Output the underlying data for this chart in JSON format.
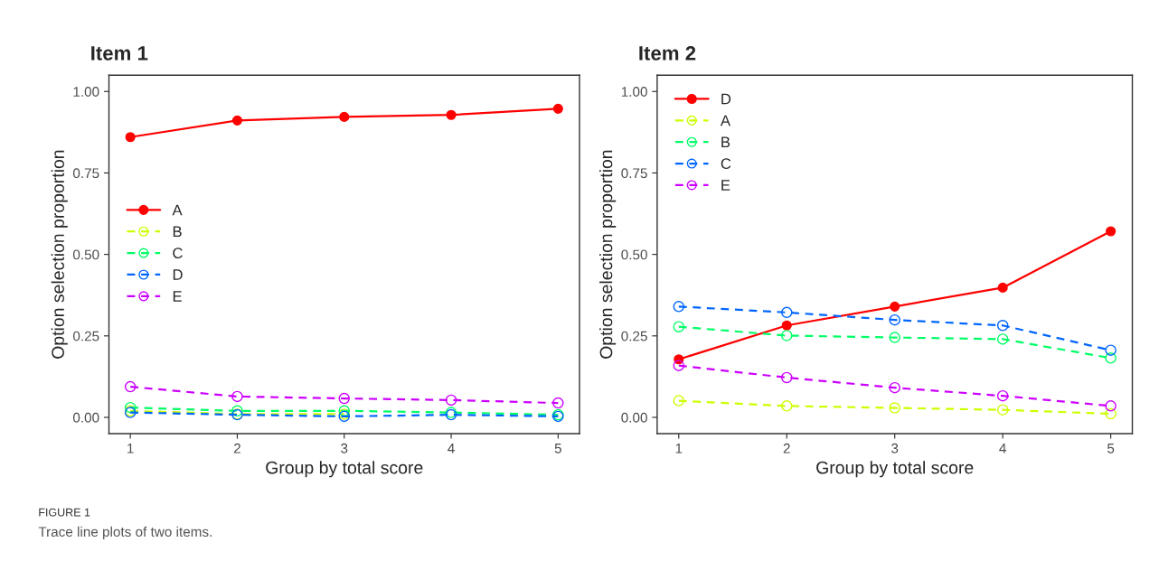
{
  "chart_data": [
    {
      "type": "line",
      "title": "Item 1",
      "xlabel": "Group by total score",
      "ylabel": "Option selection proportion",
      "x": [
        1,
        2,
        3,
        4,
        5
      ],
      "series": [
        {
          "name": "A",
          "color": "#ff0000",
          "values": [
            0.86,
            0.911,
            0.922,
            0.928,
            0.947
          ],
          "marker": "circle",
          "line_style": "solid"
        },
        {
          "name": "B",
          "color": "#ccff00",
          "values": [
            0.02,
            0.01,
            0.01,
            null,
            null
          ],
          "marker": "circle",
          "line_style": "dashed"
        },
        {
          "name": "C",
          "color": "#00ff66",
          "values": [
            0.03,
            0.02,
            0.02,
            0.015,
            0.008
          ],
          "marker": "circle",
          "line_style": "dashed"
        },
        {
          "name": "D",
          "color": "#0066ff",
          "values": [
            0.015,
            0.008,
            0.003,
            0.008,
            0.003
          ],
          "marker": "circle",
          "line_style": "dashed"
        },
        {
          "name": "E",
          "color": "#cc00ff",
          "values": [
            0.094,
            0.064,
            0.058,
            0.053,
            0.044
          ],
          "marker": "circle",
          "line_style": "dashed"
        }
      ],
      "xlim": [
        0.8,
        5.2
      ],
      "ylim": [
        -0.05,
        1.05
      ],
      "xticks": [
        1,
        2,
        3,
        4,
        5
      ],
      "yticks": [
        {
          "value": 0,
          "label": "0.00"
        },
        {
          "value": 0.25,
          "label": "0.25"
        },
        {
          "value": 0.5,
          "label": "0.50"
        },
        {
          "value": 0.75,
          "label": "0.75"
        },
        {
          "value": 1,
          "label": "1.00"
        }
      ],
      "grid": false,
      "legend": "left",
      "annotations": [
        "FIGURE 1",
        "Trace line plots of two items."
      ]
    },
    {
      "type": "line",
      "title": "Item 2",
      "xlabel": "Group by total score",
      "ylabel": "Option selection proportion",
      "x": [
        1,
        2,
        3,
        4,
        5
      ],
      "series": [
        {
          "name": "D",
          "color": "#ff0000",
          "values": [
            0.178,
            0.282,
            0.34,
            0.398,
            0.571
          ],
          "marker": "circle",
          "line_style": "solid"
        },
        {
          "name": "A",
          "color": "#ccff00",
          "values": [
            0.051,
            0.035,
            0.029,
            0.023,
            0.011
          ],
          "marker": "circle",
          "line_style": "dashed"
        },
        {
          "name": "B",
          "color": "#00ff66",
          "values": [
            0.278,
            0.251,
            0.245,
            0.24,
            0.182
          ],
          "marker": "circle",
          "line_style": "dashed"
        },
        {
          "name": "C",
          "color": "#0066ff",
          "values": [
            0.34,
            0.322,
            0.299,
            0.282,
            0.206
          ],
          "marker": "circle",
          "line_style": "dashed"
        },
        {
          "name": "E",
          "color": "#cc00ff",
          "values": [
            0.159,
            0.122,
            0.091,
            0.066,
            0.035
          ],
          "marker": "circle",
          "line_style": "dashed"
        }
      ],
      "xlim": [
        0.8,
        5.2
      ],
      "ylim": [
        -0.05,
        1.05
      ],
      "xticks": [
        1,
        2,
        3,
        4,
        5
      ],
      "yticks": [
        {
          "value": 0,
          "label": "0.00"
        },
        {
          "value": 0.25,
          "label": "0.25"
        },
        {
          "value": 0.5,
          "label": "0.50"
        },
        {
          "value": 0.75,
          "label": "0.75"
        },
        {
          "value": 1,
          "label": "1.00"
        }
      ],
      "grid": false,
      "legend": "top left"
    }
  ]
}
